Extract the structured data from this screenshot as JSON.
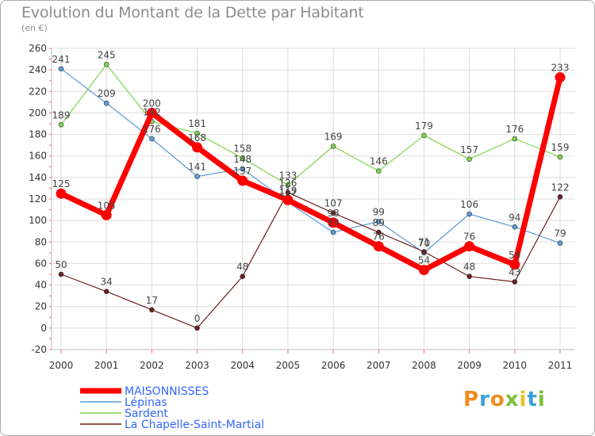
{
  "header": {
    "title": "Evolution du Montant de la Dette par Habitant",
    "subtitle": "(en €)"
  },
  "logo": {
    "text": "Proxiti",
    "colors": [
      "#f08c1e",
      "#3aa0d8",
      "#f08c1e",
      "#7bbf3a",
      "#e8c020",
      "#3aa0d8",
      "#7bbf3a"
    ]
  },
  "chart_data": {
    "type": "line",
    "x": [
      "2000",
      "2001",
      "2002",
      "2003",
      "2004",
      "2005",
      "2006",
      "2007",
      "2008",
      "2009",
      "2010",
      "2011"
    ],
    "ylim": [
      -20,
      260
    ],
    "yticks": [
      -20,
      0,
      20,
      40,
      60,
      80,
      100,
      120,
      140,
      160,
      180,
      200,
      220,
      240,
      260
    ],
    "grid": true,
    "legend_position": "bottom-left",
    "series": [
      {
        "name": "MAISONNISSES",
        "color": "#ff0000",
        "values": [
          125,
          105,
          200,
          168,
          137,
          119,
          98,
          76,
          54,
          76,
          59,
          233
        ]
      },
      {
        "name": "Lépinas",
        "color": "#5b9bd5",
        "values": [
          241,
          209,
          176,
          141,
          148,
          117,
          89,
          99,
          70,
          106,
          94,
          79
        ]
      },
      {
        "name": "Sardent",
        "color": "#7fd44c",
        "values": [
          189,
          245,
          192,
          181,
          158,
          133,
          169,
          146,
          179,
          157,
          176,
          159
        ]
      },
      {
        "name": "La Chapelle-Saint-Martial",
        "color": "#6b1f1f",
        "values": [
          50,
          34,
          17,
          0,
          48,
          126,
          107,
          89,
          71,
          48,
          43,
          122
        ]
      }
    ]
  }
}
